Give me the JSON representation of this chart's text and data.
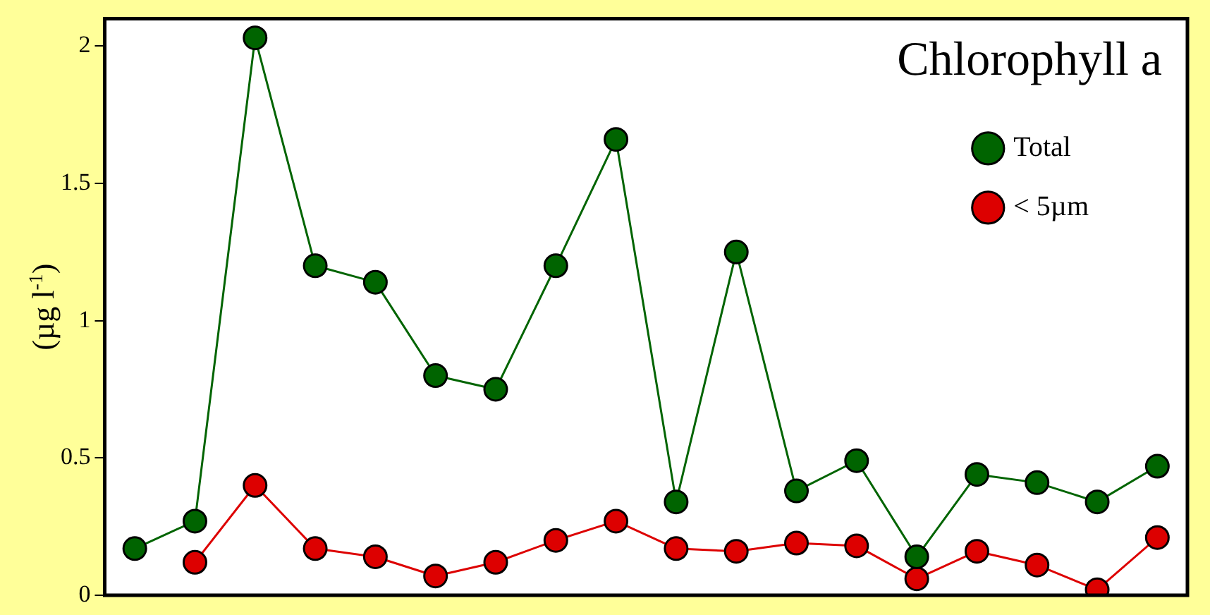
{
  "chart_data": {
    "type": "line",
    "title": "Chlorophyll a",
    "ylabel": "(µg l$^{-1}$)",
    "ylim": [
      0,
      2.1
    ],
    "yticks": [
      0,
      0.5,
      1,
      1.5,
      2
    ],
    "tick_labels": "y",
    "grid": false,
    "legend": "top right",
    "marker": "circle",
    "line_style": "solid",
    "categories": [
      null,
      null,
      null,
      null,
      null,
      null,
      null,
      null,
      null,
      null,
      null,
      null,
      null,
      null,
      null,
      null,
      null,
      null
    ],
    "series": [
      {
        "name": "Total",
        "color": "#006400",
        "values": [
          0.17,
          0.27,
          2.03,
          1.2,
          1.14,
          0.8,
          0.75,
          1.2,
          1.66,
          0.34,
          1.25,
          0.38,
          0.49,
          0.14,
          0.44,
          0.41,
          0.34,
          0.47
        ]
      },
      {
        "name": "< 5µm",
        "color": "#dd0000",
        "values": [
          null,
          0.12,
          0.4,
          0.17,
          0.14,
          0.07,
          0.12,
          0.2,
          0.27,
          0.17,
          0.16,
          0.19,
          0.18,
          0.06,
          0.16,
          0.11,
          0.02,
          0.21
        ]
      }
    ]
  }
}
